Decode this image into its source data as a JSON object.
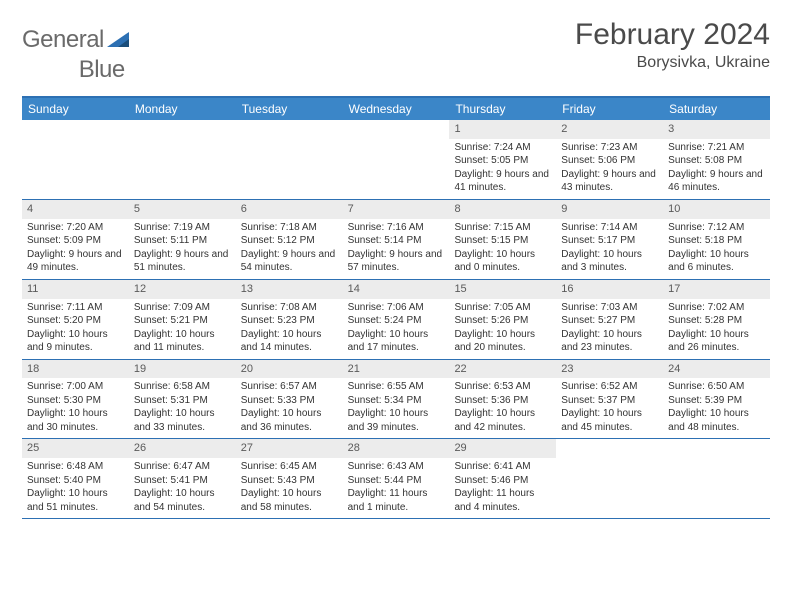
{
  "logo": {
    "word1": "General",
    "word2": "Blue"
  },
  "title": "February 2024",
  "location": "Borysivka, Ukraine",
  "day_headers": [
    "Sunday",
    "Monday",
    "Tuesday",
    "Wednesday",
    "Thursday",
    "Friday",
    "Saturday"
  ],
  "colors": {
    "header_bg": "#3b86c8",
    "border": "#2d70b3",
    "daynum_bg": "#ececec",
    "text_dark": "#333333",
    "text_mid": "#4a4a4a",
    "text_logo": "#6a6a6a",
    "logo_accent": "#2d70b3"
  },
  "weeks": [
    [
      {
        "n": "",
        "sr": "",
        "ss": "",
        "dl": ""
      },
      {
        "n": "",
        "sr": "",
        "ss": "",
        "dl": ""
      },
      {
        "n": "",
        "sr": "",
        "ss": "",
        "dl": ""
      },
      {
        "n": "",
        "sr": "",
        "ss": "",
        "dl": ""
      },
      {
        "n": "1",
        "sr": "Sunrise: 7:24 AM",
        "ss": "Sunset: 5:05 PM",
        "dl": "Daylight: 9 hours and 41 minutes."
      },
      {
        "n": "2",
        "sr": "Sunrise: 7:23 AM",
        "ss": "Sunset: 5:06 PM",
        "dl": "Daylight: 9 hours and 43 minutes."
      },
      {
        "n": "3",
        "sr": "Sunrise: 7:21 AM",
        "ss": "Sunset: 5:08 PM",
        "dl": "Daylight: 9 hours and 46 minutes."
      }
    ],
    [
      {
        "n": "4",
        "sr": "Sunrise: 7:20 AM",
        "ss": "Sunset: 5:09 PM",
        "dl": "Daylight: 9 hours and 49 minutes."
      },
      {
        "n": "5",
        "sr": "Sunrise: 7:19 AM",
        "ss": "Sunset: 5:11 PM",
        "dl": "Daylight: 9 hours and 51 minutes."
      },
      {
        "n": "6",
        "sr": "Sunrise: 7:18 AM",
        "ss": "Sunset: 5:12 PM",
        "dl": "Daylight: 9 hours and 54 minutes."
      },
      {
        "n": "7",
        "sr": "Sunrise: 7:16 AM",
        "ss": "Sunset: 5:14 PM",
        "dl": "Daylight: 9 hours and 57 minutes."
      },
      {
        "n": "8",
        "sr": "Sunrise: 7:15 AM",
        "ss": "Sunset: 5:15 PM",
        "dl": "Daylight: 10 hours and 0 minutes."
      },
      {
        "n": "9",
        "sr": "Sunrise: 7:14 AM",
        "ss": "Sunset: 5:17 PM",
        "dl": "Daylight: 10 hours and 3 minutes."
      },
      {
        "n": "10",
        "sr": "Sunrise: 7:12 AM",
        "ss": "Sunset: 5:18 PM",
        "dl": "Daylight: 10 hours and 6 minutes."
      }
    ],
    [
      {
        "n": "11",
        "sr": "Sunrise: 7:11 AM",
        "ss": "Sunset: 5:20 PM",
        "dl": "Daylight: 10 hours and 9 minutes."
      },
      {
        "n": "12",
        "sr": "Sunrise: 7:09 AM",
        "ss": "Sunset: 5:21 PM",
        "dl": "Daylight: 10 hours and 11 minutes."
      },
      {
        "n": "13",
        "sr": "Sunrise: 7:08 AM",
        "ss": "Sunset: 5:23 PM",
        "dl": "Daylight: 10 hours and 14 minutes."
      },
      {
        "n": "14",
        "sr": "Sunrise: 7:06 AM",
        "ss": "Sunset: 5:24 PM",
        "dl": "Daylight: 10 hours and 17 minutes."
      },
      {
        "n": "15",
        "sr": "Sunrise: 7:05 AM",
        "ss": "Sunset: 5:26 PM",
        "dl": "Daylight: 10 hours and 20 minutes."
      },
      {
        "n": "16",
        "sr": "Sunrise: 7:03 AM",
        "ss": "Sunset: 5:27 PM",
        "dl": "Daylight: 10 hours and 23 minutes."
      },
      {
        "n": "17",
        "sr": "Sunrise: 7:02 AM",
        "ss": "Sunset: 5:28 PM",
        "dl": "Daylight: 10 hours and 26 minutes."
      }
    ],
    [
      {
        "n": "18",
        "sr": "Sunrise: 7:00 AM",
        "ss": "Sunset: 5:30 PM",
        "dl": "Daylight: 10 hours and 30 minutes."
      },
      {
        "n": "19",
        "sr": "Sunrise: 6:58 AM",
        "ss": "Sunset: 5:31 PM",
        "dl": "Daylight: 10 hours and 33 minutes."
      },
      {
        "n": "20",
        "sr": "Sunrise: 6:57 AM",
        "ss": "Sunset: 5:33 PM",
        "dl": "Daylight: 10 hours and 36 minutes."
      },
      {
        "n": "21",
        "sr": "Sunrise: 6:55 AM",
        "ss": "Sunset: 5:34 PM",
        "dl": "Daylight: 10 hours and 39 minutes."
      },
      {
        "n": "22",
        "sr": "Sunrise: 6:53 AM",
        "ss": "Sunset: 5:36 PM",
        "dl": "Daylight: 10 hours and 42 minutes."
      },
      {
        "n": "23",
        "sr": "Sunrise: 6:52 AM",
        "ss": "Sunset: 5:37 PM",
        "dl": "Daylight: 10 hours and 45 minutes."
      },
      {
        "n": "24",
        "sr": "Sunrise: 6:50 AM",
        "ss": "Sunset: 5:39 PM",
        "dl": "Daylight: 10 hours and 48 minutes."
      }
    ],
    [
      {
        "n": "25",
        "sr": "Sunrise: 6:48 AM",
        "ss": "Sunset: 5:40 PM",
        "dl": "Daylight: 10 hours and 51 minutes."
      },
      {
        "n": "26",
        "sr": "Sunrise: 6:47 AM",
        "ss": "Sunset: 5:41 PM",
        "dl": "Daylight: 10 hours and 54 minutes."
      },
      {
        "n": "27",
        "sr": "Sunrise: 6:45 AM",
        "ss": "Sunset: 5:43 PM",
        "dl": "Daylight: 10 hours and 58 minutes."
      },
      {
        "n": "28",
        "sr": "Sunrise: 6:43 AM",
        "ss": "Sunset: 5:44 PM",
        "dl": "Daylight: 11 hours and 1 minute."
      },
      {
        "n": "29",
        "sr": "Sunrise: 6:41 AM",
        "ss": "Sunset: 5:46 PM",
        "dl": "Daylight: 11 hours and 4 minutes."
      },
      {
        "n": "",
        "sr": "",
        "ss": "",
        "dl": ""
      },
      {
        "n": "",
        "sr": "",
        "ss": "",
        "dl": ""
      }
    ]
  ]
}
